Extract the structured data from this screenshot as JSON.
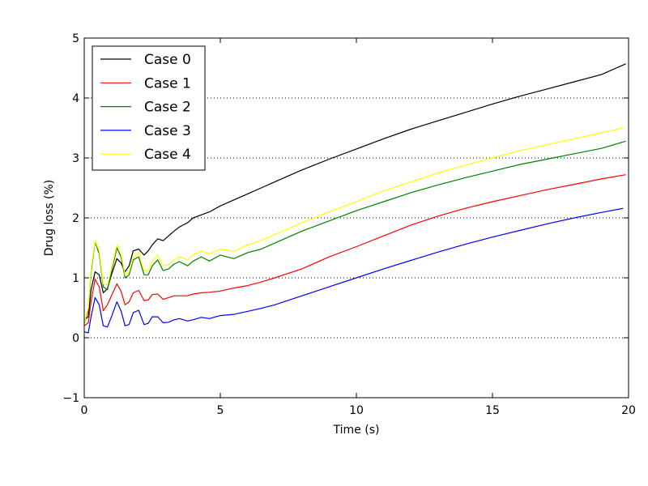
{
  "chart_data": {
    "type": "line",
    "xlabel": "Time (s)",
    "ylabel": "Drug loss (%)",
    "xlim": [
      0,
      20
    ],
    "ylim": [
      -1,
      5
    ],
    "xticks": [
      0,
      5,
      10,
      15,
      20
    ],
    "yticks": [
      -1,
      0,
      1,
      2,
      3,
      4,
      5
    ],
    "xtick_labels": [
      "0",
      "5",
      "10",
      "15",
      "20"
    ],
    "ytick_labels": [
      "−1",
      "0",
      "1",
      "2",
      "3",
      "4",
      "5"
    ],
    "grid": "horizontal dotted at y = 0, 1, 2, 3, 4",
    "legend_position": "top-left",
    "series": [
      {
        "name": "Case 0",
        "color": "#000000",
        "x": [
          0,
          0.15,
          0.25,
          0.4,
          0.55,
          0.7,
          0.85,
          1.0,
          1.2,
          1.35,
          1.5,
          1.65,
          1.8,
          2.0,
          2.2,
          2.35,
          2.5,
          2.7,
          2.9,
          3.1,
          3.3,
          3.5,
          3.8,
          4.0,
          4.3,
          4.6,
          5.0,
          5.5,
          6.0,
          6.5,
          7.0,
          8.0,
          9.0,
          10.0,
          11.0,
          12.0,
          13.0,
          14.0,
          15.0,
          16.0,
          17.0,
          18.0,
          19.0,
          19.9
        ],
        "y": [
          0.3,
          0.35,
          0.8,
          1.1,
          1.05,
          0.75,
          0.82,
          1.05,
          1.32,
          1.25,
          1.1,
          1.2,
          1.45,
          1.48,
          1.38,
          1.45,
          1.55,
          1.65,
          1.62,
          1.7,
          1.78,
          1.85,
          1.92,
          2.0,
          2.05,
          2.1,
          2.2,
          2.3,
          2.4,
          2.5,
          2.6,
          2.8,
          2.98,
          3.15,
          3.32,
          3.48,
          3.62,
          3.76,
          3.9,
          4.03,
          4.15,
          4.27,
          4.39,
          4.57
        ]
      },
      {
        "name": "Case 1",
        "color": "#ff0000",
        "x": [
          0,
          0.15,
          0.25,
          0.4,
          0.55,
          0.7,
          0.85,
          1.0,
          1.2,
          1.35,
          1.5,
          1.65,
          1.8,
          2.0,
          2.2,
          2.35,
          2.5,
          2.7,
          2.9,
          3.1,
          3.3,
          3.5,
          3.8,
          4.0,
          4.3,
          4.6,
          5.0,
          5.5,
          6.0,
          6.5,
          7.0,
          8.0,
          9.0,
          10.0,
          11.0,
          12.0,
          13.0,
          14.0,
          15.0,
          16.0,
          17.0,
          18.0,
          19.0,
          19.9
        ],
        "y": [
          0.2,
          0.25,
          0.6,
          0.98,
          0.85,
          0.45,
          0.55,
          0.7,
          0.9,
          0.78,
          0.55,
          0.6,
          0.75,
          0.79,
          0.62,
          0.63,
          0.72,
          0.73,
          0.64,
          0.67,
          0.7,
          0.7,
          0.7,
          0.73,
          0.75,
          0.76,
          0.78,
          0.83,
          0.87,
          0.93,
          1.0,
          1.15,
          1.35,
          1.52,
          1.7,
          1.88,
          2.03,
          2.16,
          2.27,
          2.37,
          2.47,
          2.56,
          2.65,
          2.72
        ]
      },
      {
        "name": "Case 2",
        "color": "#008000",
        "x": [
          0,
          0.15,
          0.25,
          0.4,
          0.55,
          0.7,
          0.85,
          1.0,
          1.2,
          1.35,
          1.5,
          1.65,
          1.8,
          2.0,
          2.2,
          2.35,
          2.5,
          2.7,
          2.9,
          3.1,
          3.3,
          3.5,
          3.8,
          4.0,
          4.3,
          4.6,
          5.0,
          5.5,
          6.0,
          6.5,
          7.0,
          8.0,
          9.0,
          10.0,
          11.0,
          12.0,
          13.0,
          14.0,
          15.0,
          16.0,
          17.0,
          18.0,
          19.0,
          19.9
        ],
        "y": [
          0.25,
          0.45,
          1.1,
          1.6,
          1.4,
          0.85,
          0.8,
          1.1,
          1.5,
          1.35,
          1.0,
          1.05,
          1.3,
          1.35,
          1.05,
          1.05,
          1.2,
          1.3,
          1.12,
          1.15,
          1.23,
          1.27,
          1.2,
          1.28,
          1.35,
          1.28,
          1.38,
          1.32,
          1.42,
          1.48,
          1.58,
          1.78,
          1.95,
          2.12,
          2.27,
          2.42,
          2.55,
          2.67,
          2.78,
          2.89,
          2.98,
          3.07,
          3.16,
          3.28
        ]
      },
      {
        "name": "Case 3",
        "color": "#0000ff",
        "x": [
          0,
          0.15,
          0.25,
          0.4,
          0.55,
          0.7,
          0.85,
          1.0,
          1.2,
          1.35,
          1.5,
          1.65,
          1.8,
          2.0,
          2.2,
          2.35,
          2.5,
          2.7,
          2.9,
          3.1,
          3.3,
          3.5,
          3.8,
          4.0,
          4.3,
          4.6,
          5.0,
          5.5,
          6.0,
          6.5,
          7.0,
          8.0,
          9.0,
          10.0,
          11.0,
          12.0,
          13.0,
          14.0,
          15.0,
          16.0,
          17.0,
          18.0,
          19.0,
          19.8
        ],
        "y": [
          0.1,
          0.08,
          0.35,
          0.67,
          0.55,
          0.2,
          0.18,
          0.35,
          0.6,
          0.45,
          0.2,
          0.22,
          0.42,
          0.46,
          0.22,
          0.24,
          0.35,
          0.35,
          0.25,
          0.26,
          0.3,
          0.32,
          0.28,
          0.3,
          0.34,
          0.32,
          0.37,
          0.39,
          0.44,
          0.49,
          0.55,
          0.7,
          0.85,
          1.0,
          1.15,
          1.29,
          1.43,
          1.56,
          1.68,
          1.79,
          1.9,
          2.0,
          2.09,
          2.16
        ]
      },
      {
        "name": "Case 4",
        "color": "#ffff00",
        "x": [
          0,
          0.15,
          0.25,
          0.4,
          0.55,
          0.7,
          0.85,
          1.0,
          1.2,
          1.35,
          1.5,
          1.65,
          1.8,
          2.0,
          2.2,
          2.35,
          2.5,
          2.7,
          2.9,
          3.1,
          3.3,
          3.5,
          3.8,
          4.0,
          4.3,
          4.6,
          5.0,
          5.5,
          6.0,
          6.5,
          7.0,
          8.0,
          9.0,
          10.0,
          11.0,
          12.0,
          13.0,
          14.0,
          15.0,
          16.0,
          17.0,
          18.0,
          19.0,
          19.8
        ],
        "y": [
          0.25,
          0.5,
          1.15,
          1.62,
          1.45,
          0.9,
          0.88,
          1.15,
          1.55,
          1.4,
          1.05,
          1.1,
          1.35,
          1.42,
          1.12,
          1.12,
          1.28,
          1.38,
          1.2,
          1.22,
          1.3,
          1.35,
          1.3,
          1.38,
          1.45,
          1.4,
          1.48,
          1.44,
          1.55,
          1.62,
          1.72,
          1.92,
          2.1,
          2.27,
          2.45,
          2.6,
          2.75,
          2.88,
          3.0,
          3.12,
          3.22,
          3.32,
          3.42,
          3.5
        ]
      }
    ]
  }
}
